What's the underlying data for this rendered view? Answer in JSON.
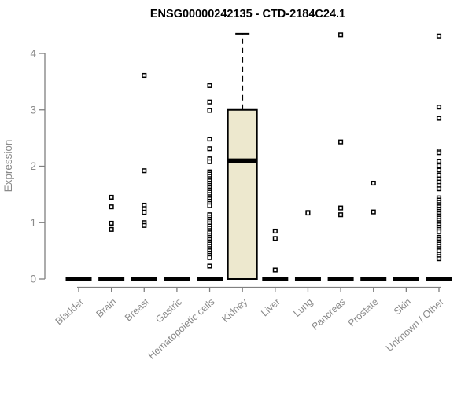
{
  "chart_data": {
    "type": "boxplot",
    "title": "ENSG00000242135 - CTD-2184C24.1",
    "xlabel": "",
    "ylabel": "Expression",
    "ylim": [
      0,
      4.4
    ],
    "yticks": [
      0,
      1,
      2,
      3,
      4
    ],
    "grid": false,
    "legend": false,
    "categories": [
      "Bladder",
      "Brain",
      "Breast",
      "Gastric",
      "Hematopoietic cells",
      "Kidney",
      "Liver",
      "Lung",
      "Pancreas",
      "Prostate",
      "Skin",
      "Unknown / Other"
    ],
    "boxes": [
      {
        "category": "Bladder",
        "q1": 0,
        "median": 0,
        "q3": 0,
        "whisker_low": 0,
        "whisker_high": 0,
        "outliers": []
      },
      {
        "category": "Brain",
        "q1": 0,
        "median": 0,
        "q3": 0,
        "whisker_low": 0,
        "whisker_high": 0,
        "outliers": [
          1.45,
          1.28,
          0.99,
          0.88
        ]
      },
      {
        "category": "Breast",
        "q1": 0,
        "median": 0,
        "q3": 0,
        "whisker_low": 0,
        "whisker_high": 0,
        "outliers": [
          3.61,
          1.92,
          1.31,
          1.25,
          1.18,
          1.0,
          0.95
        ]
      },
      {
        "category": "Gastric",
        "q1": 0,
        "median": 0,
        "q3": 0,
        "whisker_low": 0,
        "whisker_high": 0,
        "outliers": []
      },
      {
        "category": "Hematopoietic cells",
        "q1": 0,
        "median": 0,
        "q3": 0,
        "whisker_low": 0,
        "whisker_high": 0,
        "outliers": [
          3.43,
          3.14,
          2.99,
          2.48,
          2.31,
          2.13,
          2.08,
          1.9,
          1.86,
          1.82,
          1.78,
          1.74,
          1.7,
          1.66,
          1.62,
          1.58,
          1.54,
          1.5,
          1.46,
          1.42,
          1.38,
          1.34,
          1.3,
          1.14,
          1.1,
          1.06,
          1.02,
          0.98,
          0.94,
          0.9,
          0.86,
          0.82,
          0.78,
          0.74,
          0.7,
          0.66,
          0.62,
          0.58,
          0.54,
          0.5,
          0.46,
          0.42,
          0.38,
          0.23
        ]
      },
      {
        "category": "Kidney",
        "q1": 0,
        "median": 2.1,
        "q3": 3.0,
        "whisker_low": 0,
        "whisker_high": 4.35,
        "outliers": []
      },
      {
        "category": "Liver",
        "q1": 0,
        "median": 0,
        "q3": 0,
        "whisker_low": 0,
        "whisker_high": 0,
        "outliers": [
          0.85,
          0.72,
          0.16
        ]
      },
      {
        "category": "Lung",
        "q1": 0,
        "median": 0,
        "q3": 0,
        "whisker_low": 0,
        "whisker_high": 0,
        "outliers": [
          1.18,
          1.17
        ]
      },
      {
        "category": "Pancreas",
        "q1": 0,
        "median": 0,
        "q3": 0,
        "whisker_low": 0,
        "whisker_high": 0,
        "outliers": [
          4.33,
          2.43,
          1.26,
          1.14
        ]
      },
      {
        "category": "Prostate",
        "q1": 0,
        "median": 0,
        "q3": 0,
        "whisker_low": 0,
        "whisker_high": 0,
        "outliers": [
          1.7,
          1.19
        ]
      },
      {
        "category": "Skin",
        "q1": 0,
        "median": 0,
        "q3": 0,
        "whisker_low": 0,
        "whisker_high": 0,
        "outliers": []
      },
      {
        "category": "Unknown / Other",
        "q1": 0,
        "median": 0,
        "q3": 0,
        "whisker_low": 0,
        "whisker_high": 0,
        "outliers": [
          4.31,
          3.05,
          2.85,
          2.27,
          2.24,
          2.09,
          2.01,
          1.93,
          1.84,
          1.77,
          1.72,
          1.66,
          1.6,
          1.44,
          1.4,
          1.36,
          1.32,
          1.28,
          1.24,
          1.2,
          1.16,
          1.12,
          1.08,
          1.04,
          1.0,
          0.96,
          0.92,
          0.88,
          0.84,
          0.74,
          0.7,
          0.66,
          0.62,
          0.58,
          0.54,
          0.5,
          0.44,
          0.4,
          0.36
        ]
      }
    ],
    "colors": {
      "box_fill": "#ede8ce",
      "box_stroke": "#000000",
      "median": "#000000",
      "axis_line": "#808080",
      "tick_text": "#8a8a8a",
      "title_text": "#000000",
      "background": "#ffffff"
    }
  }
}
